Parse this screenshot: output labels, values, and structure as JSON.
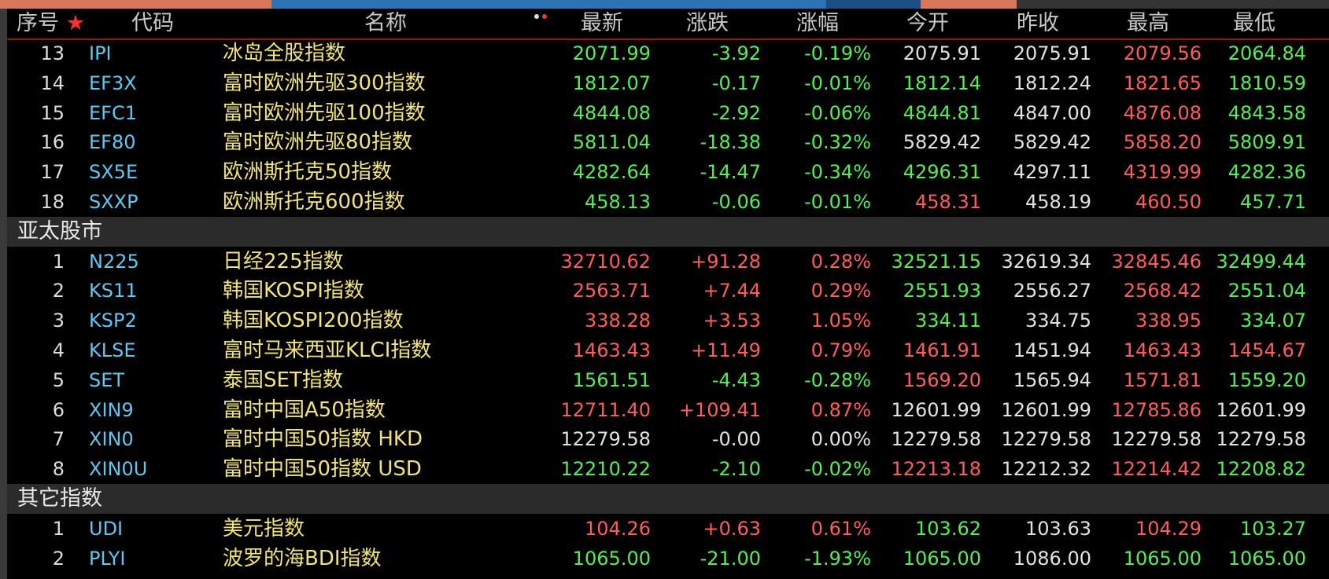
{
  "header": {
    "columns": [
      "序号",
      "★",
      "代码",
      "名称",
      "最新",
      "涨跌",
      "涨幅",
      "今开",
      "昨收",
      "最高",
      "最低"
    ]
  },
  "sections": [
    {
      "rows": [
        [
          "13",
          "IPI",
          "冰岛全股指数",
          "2071.99",
          "-3.92",
          "-0.19%",
          "2075.91",
          "2075.91",
          "2079.56",
          "2064.84"
        ],
        [
          "14",
          "EF3X",
          "富时欧洲先驱300指数",
          "1812.07",
          "-0.17",
          "-0.01%",
          "1812.14",
          "1812.24",
          "1821.65",
          "1810.59"
        ],
        [
          "15",
          "EFC1",
          "富时欧洲先驱100指数",
          "4844.08",
          "-2.92",
          "-0.06%",
          "4844.81",
          "4847.00",
          "4876.08",
          "4843.58"
        ],
        [
          "16",
          "EF80",
          "富时欧洲先驱80指数",
          "5811.04",
          "-18.38",
          "-0.32%",
          "5829.42",
          "5829.42",
          "5858.20",
          "5809.91"
        ],
        [
          "17",
          "SX5E",
          "欧洲斯托克50指数",
          "4282.64",
          "-14.47",
          "-0.34%",
          "4296.31",
          "4297.11",
          "4319.99",
          "4282.36"
        ],
        [
          "18",
          "SXXP",
          "欧洲斯托克600指数",
          "458.13",
          "-0.06",
          "-0.01%",
          "458.31",
          "458.19",
          "460.50",
          "457.71"
        ]
      ]
    },
    {
      "title": "亚太股市",
      "rows": [
        [
          "1",
          "N225",
          "日经225指数",
          "32710.62",
          "+91.28",
          "0.28%",
          "32521.15",
          "32619.34",
          "32845.46",
          "32499.44"
        ],
        [
          "2",
          "KS11",
          "韩国KOSPI指数",
          "2563.71",
          "+7.44",
          "0.29%",
          "2551.93",
          "2556.27",
          "2568.42",
          "2551.04"
        ],
        [
          "3",
          "KSP2",
          "韩国KOSPI200指数",
          "338.28",
          "+3.53",
          "1.05%",
          "334.11",
          "334.75",
          "338.95",
          "334.07"
        ],
        [
          "4",
          "KLSE",
          "富时马来西亚KLCI指数",
          "1463.43",
          "+11.49",
          "0.79%",
          "1461.91",
          "1451.94",
          "1463.43",
          "1454.67"
        ],
        [
          "5",
          "SET",
          "泰国SET指数",
          "1561.51",
          "-4.43",
          "-0.28%",
          "1569.20",
          "1565.94",
          "1571.81",
          "1559.20"
        ],
        [
          "6",
          "XIN9",
          "富时中国A50指数",
          "12711.40",
          "+109.41",
          "0.87%",
          "12601.99",
          "12601.99",
          "12785.86",
          "12601.99"
        ],
        [
          "7",
          "XIN0",
          "富时中国50指数 HKD",
          "12279.58",
          "-0.00",
          "0.00%",
          "12279.58",
          "12279.58",
          "12279.58",
          "12279.58"
        ],
        [
          "8",
          "XIN0U",
          "富时中国50指数 USD",
          "12210.22",
          "-2.10",
          "-0.02%",
          "12213.18",
          "12212.32",
          "12214.42",
          "12208.82"
        ]
      ]
    },
    {
      "title": "其它指数",
      "rows": [
        [
          "1",
          "UDI",
          "美元指数",
          "104.26",
          "+0.63",
          "0.61%",
          "103.62",
          "103.63",
          "104.29",
          "103.27"
        ],
        [
          "2",
          "PLYI",
          "波罗的海BDI指数",
          "1065.00",
          "-21.00",
          "-1.93%",
          "1065.00",
          "1086.00",
          "1065.00",
          "1065.00"
        ]
      ]
    }
  ]
}
